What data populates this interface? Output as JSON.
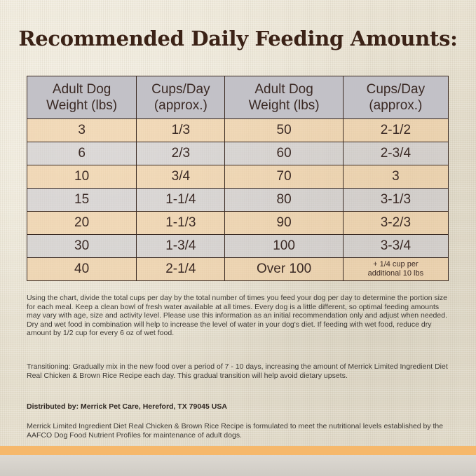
{
  "title": "Recommended Daily Feeding Amounts:",
  "table": {
    "headers": [
      [
        "Adult Dog",
        "Weight (lbs)"
      ],
      [
        "Cups/Day",
        "(approx.)"
      ],
      [
        "Adult Dog",
        "Weight (lbs)"
      ],
      [
        "Cups/Day",
        "(approx.)"
      ]
    ],
    "rows": [
      [
        "3",
        "1/3",
        "50",
        "2-1/2"
      ],
      [
        "6",
        "2/3",
        "60",
        "2-3/4"
      ],
      [
        "10",
        "3/4",
        "70",
        "3"
      ],
      [
        "15",
        "1-1/4",
        "80",
        "3-1/3"
      ],
      [
        "20",
        "1-1/3",
        "90",
        "3-2/3"
      ],
      [
        "30",
        "1-3/4",
        "100",
        "3-3/4"
      ],
      [
        "40",
        "2-1/4",
        "Over 100",
        [
          "+ 1/4 cup per",
          "additional 10 lbs"
        ]
      ]
    ]
  },
  "paragraph1": "Using the chart, divide the total cups per day by the total number of times you feed your dog per day to determine the portion size for each meal. Keep a clean bowl of fresh water available at all times. Every dog is a little different, so optimal feeding amounts may vary with age, size and activity level. Please use this information as an initial recommendation only and adjust when needed. Dry and wet food in combination will help to increase the level of water in your dog's diet. If feeding with wet food, reduce dry amount by 1/2 cup for every 6 oz of wet food.",
  "paragraph2": "Transitioning: Gradually mix in the new food over a period of 7 - 10 days, increasing the amount of Merrick Limited Ingredient Diet Real Chicken & Brown Rice Recipe each day. This gradual transition will help avoid dietary upsets.",
  "distributor": "Distributed by: Merrick Pet Care, Hereford, TX 79045 USA",
  "paragraph3": "Merrick Limited Ingredient Diet Real Chicken & Brown Rice Recipe is formulated to meet the nutritional levels established by the AAFCO Dog Food Nutrient Profiles for maintenance of adult dogs.",
  "colors": {
    "title": "#3b2216",
    "header_row": "#c2c1c7",
    "row_peach": "#f0cda0",
    "row_gray": "#c8c6cd",
    "bottom_band": "#f6b86b"
  }
}
